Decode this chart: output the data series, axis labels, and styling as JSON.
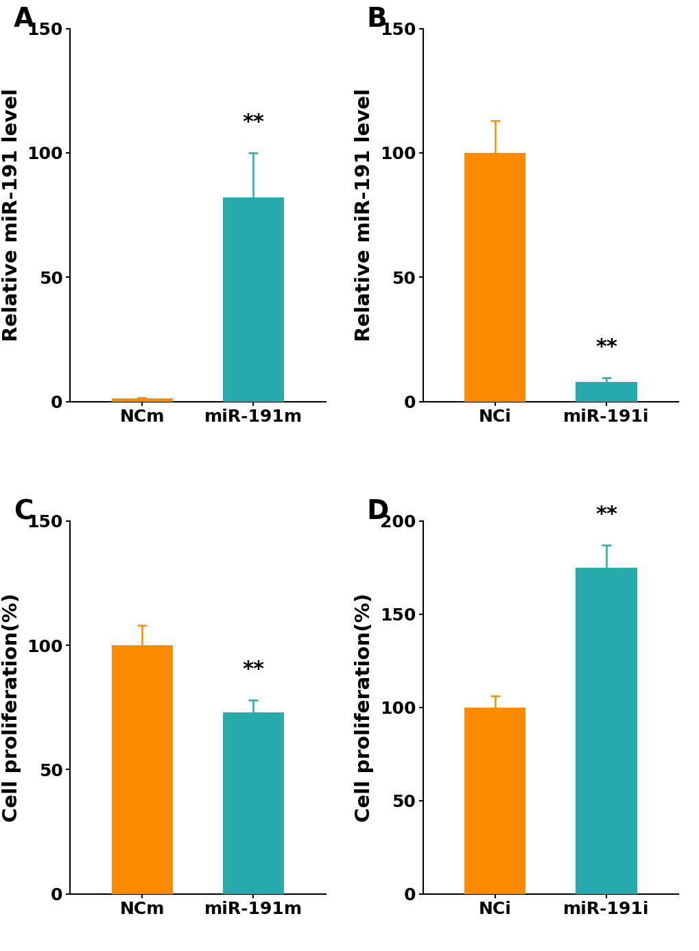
{
  "panel_A": {
    "label": "A",
    "categories": [
      "NCm",
      "miR-191m"
    ],
    "values": [
      1.2,
      82.0
    ],
    "errors": [
      0.3,
      18.0
    ],
    "colors": [
      "#FF8C00",
      "#2AABAB"
    ],
    "ylabel": "Relative miR-191 level",
    "ylim": [
      0,
      150
    ],
    "yticks": [
      0,
      50,
      100,
      150
    ],
    "sig_bar": 1,
    "sig_text": "**"
  },
  "panel_B": {
    "label": "B",
    "categories": [
      "NCi",
      "miR-191i"
    ],
    "values": [
      100.0,
      8.0
    ],
    "errors": [
      13.0,
      1.5
    ],
    "colors": [
      "#FF8C00",
      "#2AABAB"
    ],
    "ylabel": "Relative miR-191 level",
    "ylim": [
      0,
      150
    ],
    "yticks": [
      0,
      50,
      100,
      150
    ],
    "sig_bar": 1,
    "sig_text": "**"
  },
  "panel_C": {
    "label": "C",
    "categories": [
      "NCm",
      "miR-191m"
    ],
    "values": [
      100.0,
      73.0
    ],
    "errors": [
      8.0,
      5.0
    ],
    "colors": [
      "#FF8C00",
      "#2AABAB"
    ],
    "ylabel": "Cell proliferation(%)",
    "ylim": [
      0,
      150
    ],
    "yticks": [
      0,
      50,
      100,
      150
    ],
    "sig_bar": 1,
    "sig_text": "**"
  },
  "panel_D": {
    "label": "D",
    "categories": [
      "NCi",
      "miR-191i"
    ],
    "values": [
      100.0,
      175.0
    ],
    "errors": [
      6.0,
      12.0
    ],
    "colors": [
      "#FF8C00",
      "#2AABAB"
    ],
    "ylabel": "Cell proliferation(%)",
    "ylim": [
      0,
      200
    ],
    "yticks": [
      0,
      50,
      100,
      150,
      200
    ],
    "sig_bar": 1,
    "sig_text": "**"
  },
  "bar_width": 0.55,
  "background_color": "#FFFFFF",
  "ylabel_fontsize": 21,
  "tick_fontsize": 18,
  "panel_label_fontsize": 28,
  "sig_fontsize": 22,
  "error_capsize": 5,
  "error_linewidth": 1.8,
  "bar_edgecolor": "none"
}
